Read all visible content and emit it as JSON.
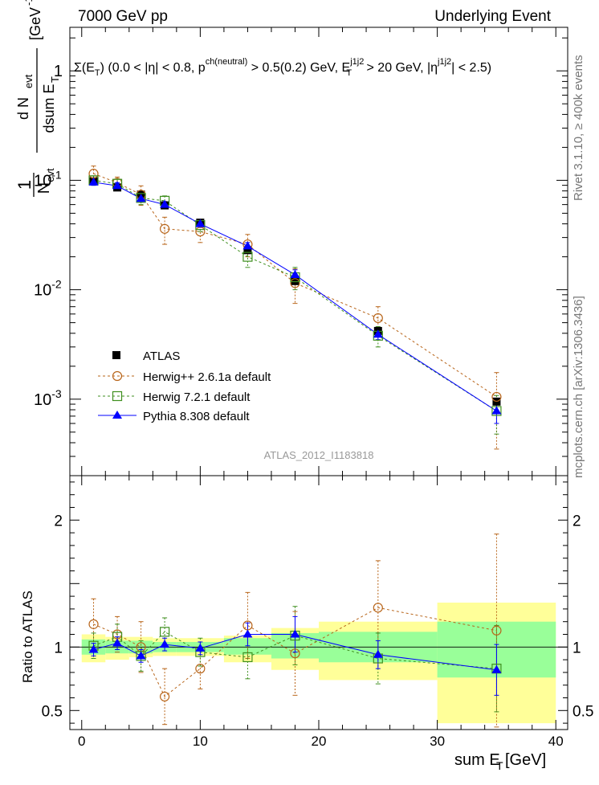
{
  "header": {
    "left": "7000 GeV pp",
    "right": "Underlying Event"
  },
  "side_labels": {
    "rivet": "Rivet 3.1.10, ≥ 400k events",
    "mcplots": "mcplots.cern.ch [arXiv:1306.3436]"
  },
  "plot_title": "Σ(E_T) (0.0 < |η| < 0.8, p^ch(neutral) > 0.5(0.2) GeV, E_T^j1j2 > 20 GeV, |η^j1j2| < 2.5)",
  "analysis_id": "ATLAS_2012_I1183818",
  "ylabel_top": "1/N_evt dN_evt/dsum E_T [GeV^-1]",
  "ylabel_bottom": "Ratio to ATLAS",
  "xlabel": "sum E_T [GeV]",
  "colors": {
    "atlas": "#000000",
    "herwigpp": "#b8651a",
    "herwig7": "#3f8f1f",
    "pythia": "#0000ff",
    "band_inner": "#99ff99",
    "band_outer": "#ffff99"
  },
  "chart_data": [
    {
      "type": "scatter",
      "log_y": true,
      "xlim": [
        -1,
        41
      ],
      "ylim": [
        0.0002,
        2.5
      ],
      "x_ticks": [
        "0",
        "10",
        "20",
        "30",
        "40"
      ],
      "y_ticks": [
        "1",
        "10^-1",
        "10^-2",
        "10^-3"
      ],
      "legend_position": "center-left",
      "series": [
        {
          "name": "ATLAS",
          "marker": "square-filled",
          "x": [
            1,
            3,
            5,
            7,
            10,
            14,
            18,
            25,
            35
          ],
          "y": [
            0.098,
            0.086,
            0.074,
            0.059,
            0.041,
            0.023,
            0.012,
            0.0042,
            0.00095
          ]
        },
        {
          "name": "Herwig++ 2.6.1a default",
          "marker": "circle-open",
          "x": [
            1,
            3,
            5,
            7,
            10,
            14,
            18,
            25,
            35
          ],
          "y": [
            0.115,
            0.095,
            0.074,
            0.036,
            0.034,
            0.026,
            0.0115,
            0.0055,
            0.00105
          ],
          "yerr": [
            0.02,
            0.012,
            0.015,
            0.01,
            0.007,
            0.006,
            0.004,
            0.0015,
            0.0007
          ]
        },
        {
          "name": "Herwig 7.2.1 default",
          "marker": "square-open",
          "x": [
            1,
            3,
            5,
            7,
            10,
            14,
            18,
            25,
            35
          ],
          "y": [
            0.1,
            0.093,
            0.069,
            0.065,
            0.039,
            0.02,
            0.013,
            0.0038,
            0.00078
          ],
          "yerr": [
            0.01,
            0.01,
            0.009,
            0.007,
            0.005,
            0.004,
            0.003,
            0.0008,
            0.0003
          ]
        },
        {
          "name": "Pythia 8.308 default",
          "marker": "triangle-filled",
          "x": [
            1,
            3,
            5,
            7,
            10,
            14,
            18,
            25,
            35
          ],
          "y": [
            0.096,
            0.089,
            0.068,
            0.06,
            0.04,
            0.025,
            0.0137,
            0.0039,
            0.00078
          ],
          "yerr": [
            0.006,
            0.006,
            0.005,
            0.004,
            0.003,
            0.002,
            0.0015,
            0.0004,
            0.00018
          ]
        }
      ]
    },
    {
      "type": "scatter",
      "xlim": [
        -1,
        41
      ],
      "ylim": [
        0.35,
        2.35
      ],
      "x_ticks": [
        "0",
        "10",
        "20",
        "30",
        "40"
      ],
      "y_ticks": [
        "0.5",
        "1",
        "2"
      ],
      "bands": {
        "edges": [
          0,
          2,
          4,
          6,
          8,
          12,
          16,
          20,
          30,
          40
        ],
        "inner": [
          [
            0.94,
            1.06
          ],
          [
            0.95,
            1.05
          ],
          [
            0.95,
            1.05
          ],
          [
            0.96,
            1.04
          ],
          [
            0.96,
            1.04
          ],
          [
            0.94,
            1.07
          ],
          [
            0.91,
            1.11
          ],
          [
            0.88,
            1.12
          ],
          [
            0.76,
            1.2
          ]
        ],
        "outer": [
          [
            0.88,
            1.1
          ],
          [
            0.9,
            1.08
          ],
          [
            0.92,
            1.08
          ],
          [
            0.93,
            1.07
          ],
          [
            0.93,
            1.07
          ],
          [
            0.88,
            1.09
          ],
          [
            0.82,
            1.15
          ],
          [
            0.74,
            1.2
          ],
          [
            0.4,
            1.35
          ]
        ]
      },
      "series": [
        {
          "name": "Herwig++ 2.6.1a default",
          "x": [
            1,
            3,
            5,
            7,
            10,
            14,
            18,
            25,
            35
          ],
          "y": [
            1.18,
            1.1,
            1.0,
            0.61,
            0.83,
            1.17,
            0.95,
            1.31,
            1.13
          ],
          "yerr": [
            0.2,
            0.14,
            0.2,
            0.22,
            0.16,
            0.26,
            0.33,
            0.37,
            0.76
          ]
        },
        {
          "name": "Herwig 7.2.1 default",
          "x": [
            1,
            3,
            5,
            7,
            10,
            14,
            18,
            25,
            35
          ],
          "y": [
            1.01,
            1.08,
            0.93,
            1.12,
            0.96,
            0.92,
            1.09,
            0.91,
            0.83
          ],
          "yerr": [
            0.1,
            0.1,
            0.12,
            0.11,
            0.11,
            0.17,
            0.23,
            0.2,
            0.34
          ]
        },
        {
          "name": "Pythia 8.308 default",
          "x": [
            1,
            3,
            5,
            7,
            10,
            14,
            18,
            25,
            35
          ],
          "y": [
            0.98,
            1.03,
            0.93,
            1.02,
            0.99,
            1.1,
            1.1,
            0.94,
            0.82
          ],
          "yerr": [
            0.05,
            0.05,
            0.05,
            0.05,
            0.05,
            0.09,
            0.14,
            0.11,
            0.2
          ]
        }
      ]
    }
  ]
}
